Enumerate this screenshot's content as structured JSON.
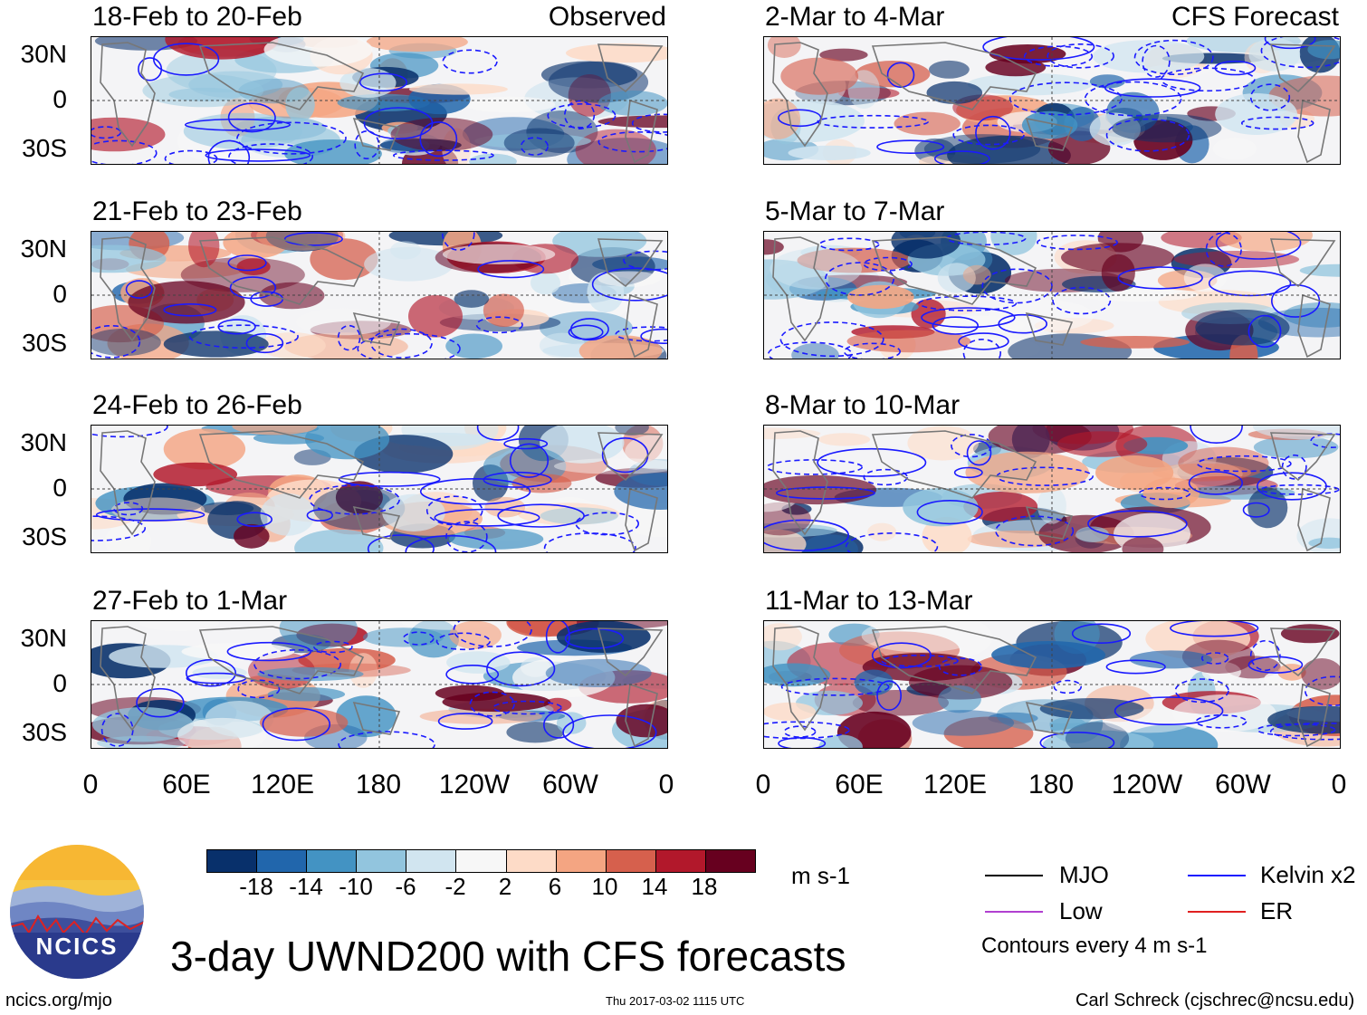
{
  "chart_data": {
    "type": "heatmap",
    "title": "3-day UWND200 with CFS forecasts",
    "units": "m s-1",
    "lat_ticks": [
      "30N",
      "0",
      "30S"
    ],
    "lon_ticks": [
      "0",
      "60E",
      "120E",
      "180",
      "120W",
      "60W",
      "0"
    ],
    "observed_label": "Observed",
    "forecast_label": "CFS Forecast",
    "panels_left": [
      {
        "title": "18-Feb to 20-Feb"
      },
      {
        "title": "21-Feb to 23-Feb"
      },
      {
        "title": "24-Feb to 26-Feb"
      },
      {
        "title": "27-Feb to 1-Mar"
      }
    ],
    "panels_right": [
      {
        "title": "2-Mar to 4-Mar"
      },
      {
        "title": "5-Mar to 7-Mar"
      },
      {
        "title": "8-Mar to 10-Mar"
      },
      {
        "title": "11-Mar to 13-Mar"
      }
    ],
    "colorbar": {
      "labels": [
        "-18",
        "-14",
        "-10",
        "-6",
        "-2",
        "2",
        "6",
        "10",
        "14",
        "18"
      ],
      "colors": [
        "#08306b",
        "#2166ac",
        "#4393c3",
        "#92c5de",
        "#d1e5f0",
        "#f7f7f7",
        "#fddbc7",
        "#f4a582",
        "#d6604d",
        "#b2182b",
        "#67001f"
      ]
    },
    "legend": {
      "items": [
        {
          "label": "MJO",
          "color": "#000000"
        },
        {
          "label": "Kelvin x2",
          "color": "#1a1aff"
        },
        {
          "label": "Low",
          "color": "#b040d0"
        },
        {
          "label": "ER",
          "color": "#e02020"
        }
      ],
      "contour_note": "Contours every 4 m s-1"
    }
  },
  "footer": {
    "logo_text": "NCICS",
    "url": "ncics.org/mjo",
    "timestamp": "Thu 2017-03-02 1115 UTC",
    "credit": "Carl Schreck (cjschrec@ncsu.edu)"
  }
}
